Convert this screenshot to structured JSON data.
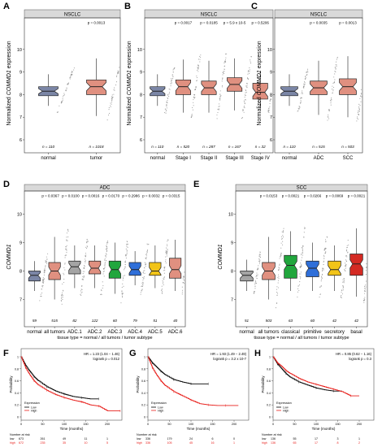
{
  "colors": {
    "normal": "#7b86a6",
    "tumor": "#e09080",
    "ai": "#a4a4a4",
    "green": "#21a63d",
    "blue": "#2f6fd9",
    "yellow": "#f2c418",
    "purple": "#7a3fb0",
    "red": "#d42a23",
    "strip": "#d9d9d9",
    "km_low": "#000000",
    "km_high": "#e8201c"
  },
  "chart_data": [
    {
      "panel": "A",
      "type": "box",
      "strip": "NSCLC",
      "ylabel_pre": "Normalized ",
      "ylabel_gene": "COMMD1",
      "ylabel_post": " expression",
      "ylim": [
        6,
        11
      ],
      "yticks": [
        6,
        7,
        8,
        9,
        10
      ],
      "categories": [
        "normal",
        "tumor"
      ],
      "n": [
        "n = 110",
        "n = 1018"
      ],
      "pvalues": [
        "p = 0.0013"
      ],
      "boxes": [
        {
          "stats": [
            7.5,
            7.95,
            8.15,
            8.35,
            8.9
          ],
          "color": "normal"
        },
        {
          "stats": [
            7.05,
            8.0,
            8.35,
            8.65,
            9.6
          ],
          "color": "tumor"
        }
      ]
    },
    {
      "panel": "B",
      "type": "box",
      "strip": "NSCLC",
      "ylabel_pre": "Normalized ",
      "ylabel_gene": "COMMD1",
      "ylabel_post": " expression",
      "ylim": [
        6,
        11
      ],
      "yticks": [
        6,
        7,
        8,
        9,
        10
      ],
      "categories": [
        "normal",
        "Stage I",
        "Stage II",
        "Stage III",
        "Stage IV"
      ],
      "n": [
        "n = 110",
        "n = 520",
        "n = 287",
        "n = 167",
        "n = 32"
      ],
      "pvalues": [
        "p = 0.0017",
        "p = 0.0185",
        "p = 5.9 x 10-5",
        "p = 0.5206"
      ],
      "boxes": [
        {
          "stats": [
            7.5,
            7.95,
            8.15,
            8.35,
            8.9
          ],
          "color": "normal"
        },
        {
          "stats": [
            7.2,
            8.0,
            8.35,
            8.65,
            9.55
          ],
          "color": "tumor"
        },
        {
          "stats": [
            7.2,
            8.0,
            8.3,
            8.6,
            9.5
          ],
          "color": "tumor"
        },
        {
          "stats": [
            7.3,
            8.15,
            8.45,
            8.75,
            9.6
          ],
          "color": "tumor"
        },
        {
          "stats": [
            7.4,
            7.8,
            8.1,
            8.5,
            9.0
          ],
          "color": "tumor"
        }
      ]
    },
    {
      "panel": "C",
      "type": "box",
      "strip": "NSCLC",
      "ylabel_pre": "Normalized ",
      "ylabel_gene": "COMMD1",
      "ylabel_post": " expression",
      "ylim": [
        6,
        11
      ],
      "yticks": [
        6,
        7,
        8,
        9,
        10
      ],
      "categories": [
        "normal",
        "ADC",
        "SCC"
      ],
      "n": [
        "n = 110",
        "n = 515",
        "n = 503"
      ],
      "pvalues": [
        "p = 0.0035",
        "p = 0.0013"
      ],
      "boxes": [
        {
          "stats": [
            7.5,
            7.95,
            8.15,
            8.35,
            8.9
          ],
          "color": "normal"
        },
        {
          "stats": [
            7.1,
            8.0,
            8.3,
            8.6,
            9.5
          ],
          "color": "tumor"
        },
        {
          "stats": [
            7.0,
            8.0,
            8.35,
            8.7,
            9.7
          ],
          "color": "tumor"
        }
      ]
    },
    {
      "panel": "D",
      "type": "box",
      "strip": "ADC",
      "ylabel_pre": "",
      "ylabel_gene": "COMMD1",
      "ylabel_post": "",
      "xlabel": "tissue type = normal / all tumors / tumor subtype",
      "ylim": [
        6.5,
        10.5
      ],
      "yticks": [
        7,
        8,
        9,
        10
      ],
      "categories": [
        "normal",
        "all tumors",
        "ADC.1",
        "ADC.2",
        "ADC.3",
        "ADC.4",
        "ADC.5",
        "ADC.6"
      ],
      "n": [
        "59",
        "515",
        "82",
        "122",
        "60",
        "79",
        "51",
        "40"
      ],
      "pvalues": [
        "p = 0.0367",
        "p = 0.0100",
        "p = 0.0016",
        "p = 0.0170",
        "p = 0.2986",
        "p = 0.0032",
        "p = 0.0315"
      ],
      "boxes": [
        {
          "stats": [
            7.3,
            7.65,
            7.85,
            8.0,
            8.35
          ],
          "color": "normal"
        },
        {
          "stats": [
            7.0,
            7.7,
            8.0,
            8.3,
            9.2
          ],
          "color": "tumor"
        },
        {
          "stats": [
            7.4,
            7.9,
            8.15,
            8.35,
            8.9
          ],
          "color": "ai"
        },
        {
          "stats": [
            7.4,
            7.9,
            8.1,
            8.35,
            8.9
          ],
          "color": "tumor"
        },
        {
          "stats": [
            7.2,
            7.75,
            8.05,
            8.35,
            9.0
          ],
          "color": "green"
        },
        {
          "stats": [
            7.5,
            7.85,
            8.05,
            8.3,
            8.7
          ],
          "color": "blue"
        },
        {
          "stats": [
            7.4,
            7.85,
            8.0,
            8.3,
            8.9
          ],
          "color": "yellow"
        },
        {
          "stats": [
            7.3,
            7.75,
            8.05,
            8.45,
            9.1
          ],
          "color": "tumor"
        }
      ]
    },
    {
      "panel": "E",
      "type": "box",
      "strip": "SCC",
      "ylabel_pre": "",
      "ylabel_gene": "COMMD1",
      "ylabel_post": "",
      "xlabel": "tissue type = normal / all tumors / tumor subtype",
      "ylim": [
        6.5,
        10.5
      ],
      "yticks": [
        7,
        8,
        9,
        10
      ],
      "categories": [
        "normal",
        "all tumors",
        "classical",
        "primitive",
        "secretory",
        "basal"
      ],
      "n": [
        "51",
        "503",
        "63",
        "60",
        "42",
        "42"
      ],
      "pvalues": [
        "p = 0.0153",
        "p = 0.0021",
        "p = 0.0266",
        "p = 0.0069",
        "p = 0.0021"
      ],
      "boxes": [
        {
          "stats": [
            7.3,
            7.65,
            7.85,
            8.0,
            8.4
          ],
          "color": "ai"
        },
        {
          "stats": [
            7.0,
            7.7,
            8.0,
            8.3,
            9.2
          ],
          "color": "tumor"
        },
        {
          "stats": [
            7.3,
            7.75,
            8.2,
            8.55,
            9.4
          ],
          "color": "green"
        },
        {
          "stats": [
            7.3,
            7.8,
            8.1,
            8.35,
            9.0
          ],
          "color": "blue"
        },
        {
          "stats": [
            7.3,
            7.85,
            8.05,
            8.35,
            8.9
          ],
          "color": "yellow"
        },
        {
          "stats": [
            7.1,
            7.85,
            8.25,
            8.6,
            9.5
          ],
          "color": "red"
        }
      ]
    },
    {
      "panel": "F",
      "type": "line",
      "hr": "HR = 1.23 (1.04 − 1.46)",
      "logrank": "logrank p = 0.012",
      "xlabel": "Time (months)",
      "ylabel": "Probability",
      "xlim": [
        0,
        200
      ],
      "xticks": [
        0,
        50,
        100,
        150,
        200
      ],
      "yticks": [
        0,
        0.2,
        0.4,
        0.6,
        0.8,
        1
      ],
      "legend_title": "Expression",
      "legend_labels": [
        "Low",
        "High"
      ],
      "risk_title": "Number at risk",
      "risk": [
        {
          "name": "low",
          "values": [
            "673",
            "261",
            "49",
            "11",
            "1"
          ]
        },
        {
          "name": "high",
          "values": [
            "672",
            "235",
            "35",
            "10",
            "5"
          ]
        }
      ],
      "series": [
        {
          "name": "Low",
          "color": "km_low",
          "x": [
            0,
            10,
            20,
            30,
            40,
            60,
            80,
            100,
            120,
            140,
            160,
            180
          ],
          "y": [
            1,
            0.86,
            0.76,
            0.67,
            0.6,
            0.5,
            0.43,
            0.38,
            0.34,
            0.32,
            0.3,
            0.3
          ]
        },
        {
          "name": "High",
          "color": "km_high",
          "x": [
            0,
            10,
            20,
            30,
            40,
            60,
            80,
            100,
            120,
            140,
            160,
            180,
            200,
            230
          ],
          "y": [
            1,
            0.82,
            0.7,
            0.6,
            0.53,
            0.44,
            0.37,
            0.32,
            0.28,
            0.25,
            0.2,
            0.18,
            0.1,
            0.1
          ]
        }
      ]
    },
    {
      "panel": "G",
      "type": "line",
      "hr": "HR = 1.93 (1.49 − 2.49)",
      "logrank": "logrank p = 3.2 x 10-7",
      "xlabel": "Time (months)",
      "ylabel": "Probability",
      "xlim": [
        0,
        200
      ],
      "xticks": [
        0,
        50,
        100,
        150,
        200
      ],
      "yticks": [
        0,
        0.2,
        0.4,
        0.6,
        0.8,
        1
      ],
      "legend_title": "Expression",
      "legend_labels": [
        "Low",
        "High"
      ],
      "risk_title": "Number at risk",
      "risk": [
        {
          "name": "low",
          "values": [
            "336",
            "179",
            "24",
            "6",
            "0"
          ]
        },
        {
          "name": "high",
          "values": [
            "336",
            "105",
            "45",
            "16",
            "1"
          ]
        }
      ],
      "series": [
        {
          "name": "Low",
          "color": "km_low",
          "x": [
            0,
            10,
            20,
            30,
            40,
            60,
            80,
            100,
            120,
            140
          ],
          "y": [
            1,
            0.9,
            0.83,
            0.76,
            0.7,
            0.62,
            0.58,
            0.55,
            0.55,
            0.55
          ]
        },
        {
          "name": "High",
          "color": "km_high",
          "x": [
            0,
            10,
            20,
            30,
            40,
            60,
            80,
            100,
            120,
            140,
            160,
            180,
            210
          ],
          "y": [
            1,
            0.82,
            0.7,
            0.6,
            0.52,
            0.42,
            0.35,
            0.28,
            0.22,
            0.2,
            0.19,
            0.19,
            0.19
          ]
        }
      ]
    },
    {
      "panel": "H",
      "type": "line",
      "hr": "HR = 0.85 (0.62 − 1.16)",
      "logrank": "logrank p = 0.3",
      "xlabel": "Time (months)",
      "ylabel": "Probability",
      "xlim": [
        0,
        200
      ],
      "xticks": [
        0,
        50,
        100,
        150,
        200
      ],
      "yticks": [
        0,
        0.2,
        0.4,
        0.6,
        0.8,
        1
      ],
      "legend_title": "Expression",
      "legend_labels": [
        "Low",
        "High"
      ],
      "risk_title": "Number at risk",
      "risk": [
        {
          "name": "low",
          "values": [
            "136",
            "55",
            "17",
            "3",
            "1"
          ]
        },
        {
          "name": "high",
          "values": [
            "136",
            "65",
            "17",
            "8",
            "2"
          ]
        }
      ],
      "series": [
        {
          "name": "Low",
          "color": "km_low",
          "x": [
            0,
            10,
            20,
            30,
            40,
            60,
            80,
            100,
            120,
            140,
            160
          ],
          "y": [
            1,
            0.88,
            0.8,
            0.72,
            0.66,
            0.58,
            0.53,
            0.48,
            0.45,
            0.43,
            0.43
          ]
        },
        {
          "name": "High",
          "color": "km_high",
          "x": [
            0,
            10,
            20,
            30,
            40,
            60,
            80,
            100,
            120,
            140,
            160,
            180,
            200
          ],
          "y": [
            1,
            0.9,
            0.84,
            0.77,
            0.72,
            0.64,
            0.58,
            0.54,
            0.5,
            0.46,
            0.42,
            0.35,
            0.35
          ]
        }
      ]
    }
  ]
}
